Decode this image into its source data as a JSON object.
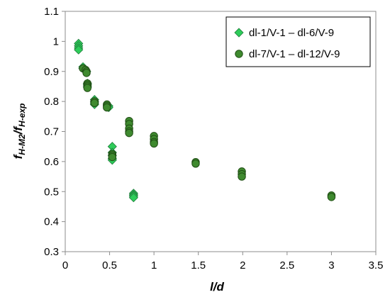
{
  "chart_data": {
    "type": "scatter",
    "title": "",
    "xlabel": "l/d",
    "ylabel_parts": {
      "f1": "f",
      "sub1": "H-M2",
      "slash": "/",
      "f2": "f",
      "sub2": "H-exp"
    },
    "xlim": [
      0,
      3.5
    ],
    "ylim": [
      0.3,
      1.1
    ],
    "x_ticks": [
      "0",
      "0.5",
      "1",
      "1.5",
      "2",
      "2.5",
      "3",
      "3.5"
    ],
    "y_ticks": [
      "0.3",
      "0.4",
      "0.5",
      "0.6",
      "0.7",
      "0.8",
      "0.9",
      "1",
      "1.1"
    ],
    "grid": false,
    "legend_position": "top-right",
    "series": [
      {
        "name": "dl-1/V-1 – dl-6/V-9",
        "marker": "diamond",
        "color": "#2ecc5a",
        "points": [
          [
            0.15,
            0.993
          ],
          [
            0.15,
            0.985
          ],
          [
            0.15,
            0.978
          ],
          [
            0.15,
            0.972
          ],
          [
            0.2,
            0.915
          ],
          [
            0.2,
            0.91
          ],
          [
            0.23,
            0.905
          ],
          [
            0.24,
            0.9
          ],
          [
            0.25,
            0.86
          ],
          [
            0.25,
            0.855
          ],
          [
            0.25,
            0.848
          ],
          [
            0.33,
            0.806
          ],
          [
            0.33,
            0.8
          ],
          [
            0.33,
            0.795
          ],
          [
            0.33,
            0.79
          ],
          [
            0.49,
            0.785
          ],
          [
            0.49,
            0.78
          ],
          [
            0.53,
            0.65
          ],
          [
            0.53,
            0.63
          ],
          [
            0.53,
            0.62
          ],
          [
            0.53,
            0.61
          ],
          [
            0.53,
            0.605
          ],
          [
            0.77,
            0.494
          ],
          [
            0.77,
            0.489
          ],
          [
            0.77,
            0.485
          ],
          [
            0.77,
            0.48
          ]
        ]
      },
      {
        "name": "dl-7/V-1 – dl-12/V-9",
        "marker": "circle",
        "color": "#3f8a2f",
        "points": [
          [
            0.2,
            0.91
          ],
          [
            0.23,
            0.905
          ],
          [
            0.24,
            0.9
          ],
          [
            0.24,
            0.895
          ],
          [
            0.25,
            0.86
          ],
          [
            0.25,
            0.855
          ],
          [
            0.25,
            0.85
          ],
          [
            0.25,
            0.845
          ],
          [
            0.33,
            0.8
          ],
          [
            0.33,
            0.795
          ],
          [
            0.47,
            0.79
          ],
          [
            0.47,
            0.785
          ],
          [
            0.47,
            0.78
          ],
          [
            0.53,
            0.625
          ],
          [
            0.53,
            0.62
          ],
          [
            0.53,
            0.615
          ],
          [
            0.72,
            0.735
          ],
          [
            0.72,
            0.725
          ],
          [
            0.72,
            0.71
          ],
          [
            0.72,
            0.7
          ],
          [
            0.72,
            0.695
          ],
          [
            1.0,
            0.685
          ],
          [
            1.0,
            0.675
          ],
          [
            1.0,
            0.665
          ],
          [
            1.0,
            0.66
          ],
          [
            1.47,
            0.598
          ],
          [
            1.47,
            0.593
          ],
          [
            1.99,
            0.567
          ],
          [
            1.99,
            0.558
          ],
          [
            1.99,
            0.55
          ],
          [
            3.0,
            0.487
          ],
          [
            3.0,
            0.482
          ]
        ]
      }
    ]
  }
}
